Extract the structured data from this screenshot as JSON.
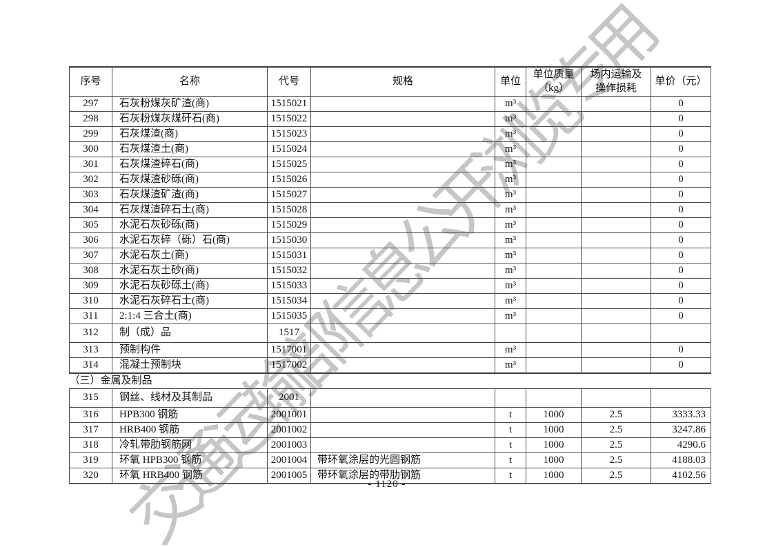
{
  "page": {
    "watermark": "交通运输部信息公开浏览专用",
    "page_number": "- 1120 -"
  },
  "table": {
    "headers": [
      "序号",
      "名称",
      "代号",
      "规格",
      "单位",
      "单位质量\n（kg）",
      "场内运输及\n操作损耗",
      "单价（元）"
    ],
    "rows": [
      {
        "no": "297",
        "name": "石灰粉煤灰矿渣(商)",
        "code": "1515021",
        "spec": "",
        "unit": "m³",
        "mass": "",
        "loss": "",
        "price": "0"
      },
      {
        "no": "298",
        "name": "石灰粉煤灰煤矸石(商)",
        "code": "1515022",
        "spec": "",
        "unit": "m³",
        "mass": "",
        "loss": "",
        "price": "0"
      },
      {
        "no": "299",
        "name": "石灰煤渣(商)",
        "code": "1515023",
        "spec": "",
        "unit": "m³",
        "mass": "",
        "loss": "",
        "price": "0"
      },
      {
        "no": "300",
        "name": "石灰煤渣土(商)",
        "code": "1515024",
        "spec": "",
        "unit": "m³",
        "mass": "",
        "loss": "",
        "price": "0"
      },
      {
        "no": "301",
        "name": "石灰煤渣碎石(商)",
        "code": "1515025",
        "spec": "",
        "unit": "m³",
        "mass": "",
        "loss": "",
        "price": "0"
      },
      {
        "no": "302",
        "name": "石灰煤渣砂砾(商)",
        "code": "1515026",
        "spec": "",
        "unit": "m³",
        "mass": "",
        "loss": "",
        "price": "0"
      },
      {
        "no": "303",
        "name": "石灰煤渣矿渣(商)",
        "code": "1515027",
        "spec": "",
        "unit": "m³",
        "mass": "",
        "loss": "",
        "price": "0"
      },
      {
        "no": "304",
        "name": "石灰煤渣碎石土(商)",
        "code": "1515028",
        "spec": "",
        "unit": "m³",
        "mass": "",
        "loss": "",
        "price": "0"
      },
      {
        "no": "305",
        "name": "水泥石灰砂砾(商)",
        "code": "1515029",
        "spec": "",
        "unit": "m³",
        "mass": "",
        "loss": "",
        "price": "0"
      },
      {
        "no": "306",
        "name": "水泥石灰碎（砾）石(商)",
        "code": "1515030",
        "spec": "",
        "unit": "m³",
        "mass": "",
        "loss": "",
        "price": "0"
      },
      {
        "no": "307",
        "name": "水泥石灰土(商)",
        "code": "1515031",
        "spec": "",
        "unit": "m³",
        "mass": "",
        "loss": "",
        "price": "0"
      },
      {
        "no": "308",
        "name": "水泥石灰土砂(商)",
        "code": "1515032",
        "spec": "",
        "unit": "m³",
        "mass": "",
        "loss": "",
        "price": "0"
      },
      {
        "no": "309",
        "name": "水泥石灰砂砾土(商)",
        "code": "1515033",
        "spec": "",
        "unit": "m³",
        "mass": "",
        "loss": "",
        "price": "0"
      },
      {
        "no": "310",
        "name": "水泥石灰碎石土(商)",
        "code": "1515034",
        "spec": "",
        "unit": "m³",
        "mass": "",
        "loss": "",
        "price": "0"
      },
      {
        "no": "311",
        "name": "2:1:4 三合土(商)",
        "code": "1515035",
        "spec": "",
        "unit": "m³",
        "mass": "",
        "loss": "",
        "price": "0"
      },
      {
        "type": "group",
        "no": "312",
        "name": "制（成）品",
        "code": "1517",
        "spec": "",
        "unit": "",
        "mass": "",
        "loss": "",
        "price": ""
      },
      {
        "no": "313",
        "name": "预制构件",
        "code": "1517001",
        "spec": "",
        "unit": "m³",
        "mass": "",
        "loss": "",
        "price": "0"
      },
      {
        "no": "314",
        "name": "混凝土预制块",
        "code": "1517002",
        "spec": "",
        "unit": "m³",
        "mass": "",
        "loss": "",
        "price": "0"
      },
      {
        "type": "section",
        "title": "（三）金属及制品"
      },
      {
        "type": "group",
        "no": "315",
        "name": "钢丝、线材及其制品",
        "code": "2001",
        "spec": "",
        "unit": "",
        "mass": "",
        "loss": "",
        "price": ""
      },
      {
        "no": "316",
        "name": "HPB300 钢筋",
        "code": "2001001",
        "spec": "",
        "unit": "t",
        "mass": "1000",
        "loss": "2.5",
        "price": "3333.33"
      },
      {
        "no": "317",
        "name": "HRB400 钢筋",
        "code": "2001002",
        "spec": "",
        "unit": "t",
        "mass": "1000",
        "loss": "2.5",
        "price": "3247.86"
      },
      {
        "no": "318",
        "name": "冷轧带肋钢筋网",
        "code": "2001003",
        "spec": "",
        "unit": "t",
        "mass": "1000",
        "loss": "2.5",
        "price": "4290.6"
      },
      {
        "no": "319",
        "name": "环氧 HPB300 钢筋",
        "code": "2001004",
        "spec": "带环氧涂层的光圆钢筋",
        "unit": "t",
        "mass": "1000",
        "loss": "2.5",
        "price": "4188.03"
      },
      {
        "no": "320",
        "name": "环氧 HRB400 钢筋",
        "code": "2001005",
        "spec": "带环氧涂层的带肋钢筋",
        "unit": "t",
        "mass": "1000",
        "loss": "2.5",
        "price": "4102.56"
      }
    ]
  }
}
